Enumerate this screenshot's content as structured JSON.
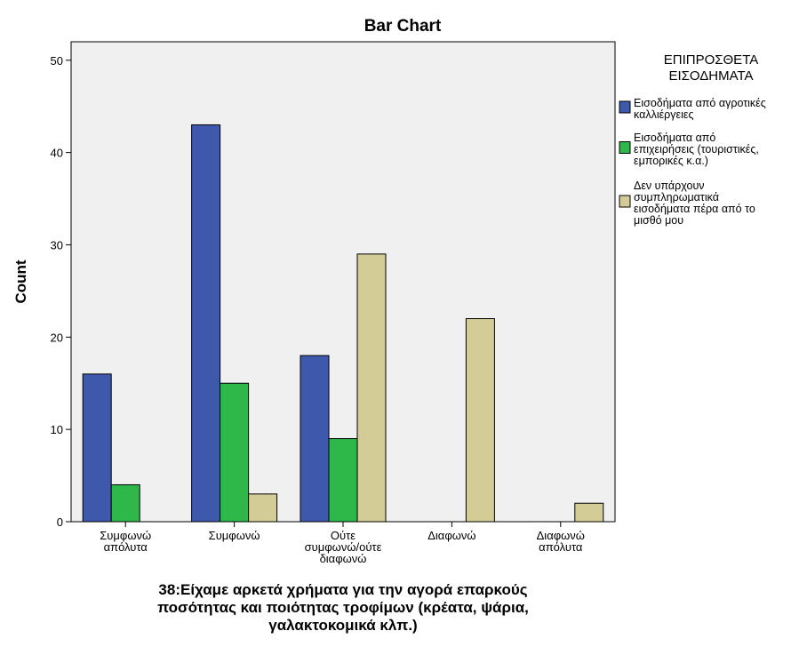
{
  "chart_data": {
    "type": "bar",
    "title": "Bar Chart",
    "xlabel": "38:Είχαμε αρκετά χρήματα για την αγορά επαρκούς ποσότητας και ποιότητας τροφίμων (κρέατα, ψάρια, γαλακτοκομικά κλπ.)",
    "ylabel": "Count",
    "ylim": [
      0,
      52
    ],
    "yticks": [
      0,
      10,
      20,
      30,
      40,
      50
    ],
    "categories": [
      "Συμφωνώ απόλυτα",
      "Συμφωνώ",
      "Ούτε συμφωνώ/ούτε διαφωνώ",
      "Διαφωνώ",
      "Διαφωνώ απόλυτα"
    ],
    "legend_title": "ΕΠΙΠΡΟΣΘΕΤΑ ΕΙΣΟΔΗΜΑΤΑ",
    "legend_placement": "right",
    "grid": false,
    "series": [
      {
        "name": "Εισοδήματα από αγροτικές καλλιέργειες",
        "color": "#3e58ac",
        "values": [
          16,
          43,
          18,
          null,
          null
        ]
      },
      {
        "name": "Εισοδήματα από επιχειρήσεις (τουριστικές, εμπορικές κ.α.)",
        "color": "#2fb84a",
        "values": [
          4,
          15,
          9,
          null,
          null
        ]
      },
      {
        "name": "Δεν υπάρχουν συμπληρωματικά εισοδήματα πέρα από το μισθό μου",
        "color": "#d3cc96",
        "values": [
          null,
          3,
          29,
          22,
          2
        ]
      }
    ]
  }
}
